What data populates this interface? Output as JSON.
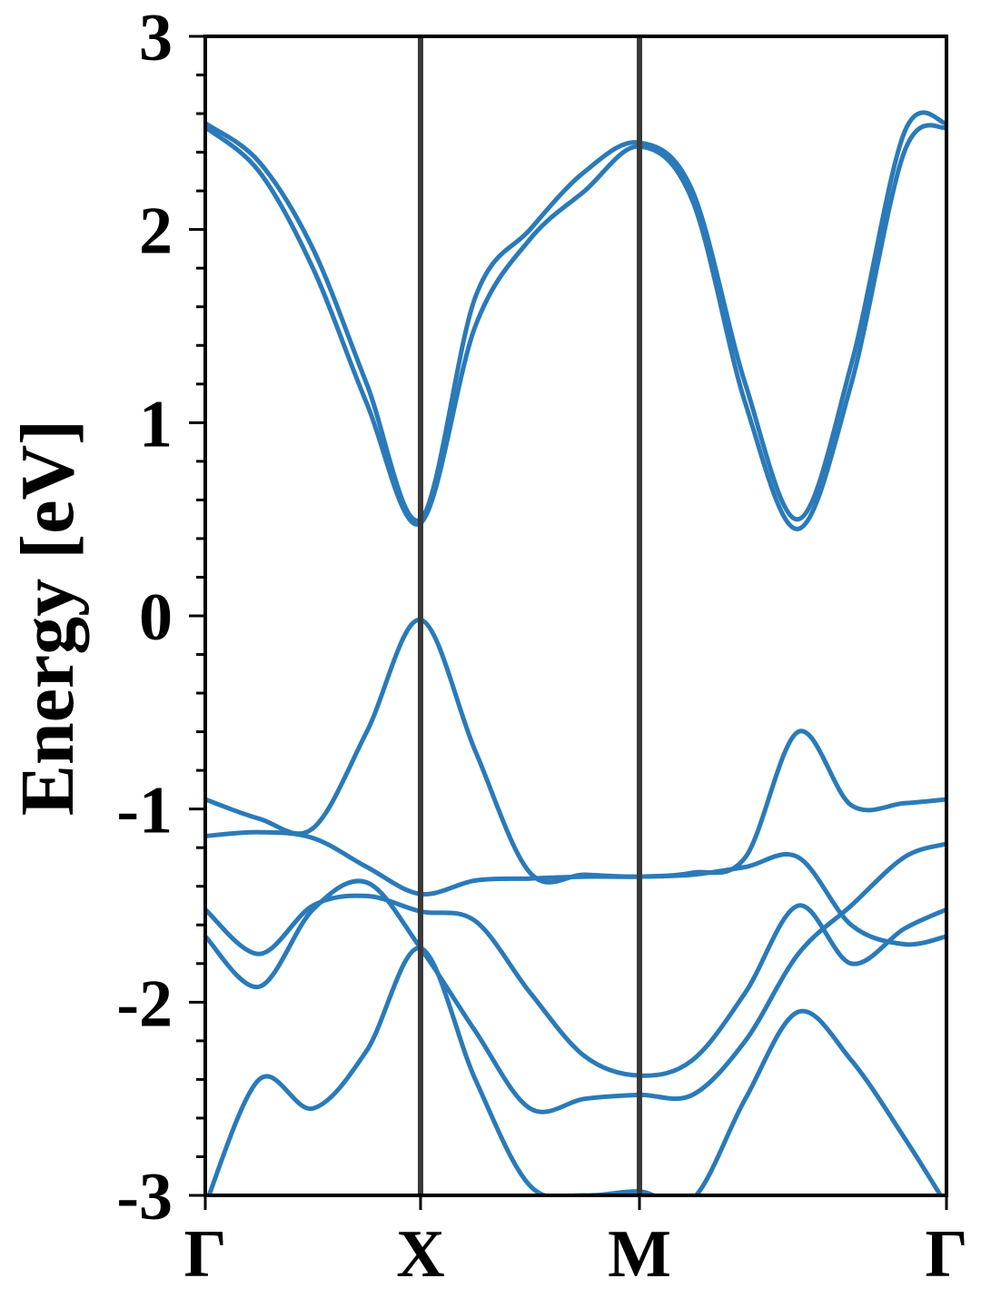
{
  "chart_data": {
    "type": "line",
    "title": "",
    "xlabel": "",
    "ylabel": "Energy [eV]",
    "ylim": [
      -3,
      3
    ],
    "xlim": [
      0,
      3.45
    ],
    "high_symmetry_points": [
      {
        "label": "Γ",
        "x": 0
      },
      {
        "label": "X",
        "x": 1.0
      },
      {
        "label": "M",
        "x": 2.0
      },
      {
        "label": "Γ",
        "x": 3.45
      }
    ],
    "y_ticks": [
      -3,
      -2,
      -1,
      0,
      1,
      2,
      3
    ],
    "y_tick_labels": [
      "-3",
      "-2",
      "-1",
      "0",
      "1",
      "2",
      "3"
    ],
    "line_color": "#2a7ab9",
    "divider_color": "#3a3a3a",
    "grid": false,
    "series": [
      {
        "x": [
          0,
          0.25,
          0.5,
          0.75,
          1.0,
          1.25,
          1.5,
          1.75,
          2.0,
          2.25,
          2.5,
          2.75,
          3.0,
          3.25,
          3.45
        ],
        "values": [
          2.55,
          2.35,
          1.9,
          1.2,
          0.5,
          1.65,
          2.0,
          2.3,
          2.45,
          2.2,
          1.2,
          0.5,
          1.3,
          2.5,
          2.55
        ]
      },
      {
        "x": [
          0,
          0.25,
          0.5,
          0.75,
          1.0,
          1.25,
          1.5,
          1.75,
          2.0,
          2.25,
          2.5,
          2.75,
          3.0,
          3.25,
          3.45
        ],
        "values": [
          2.53,
          2.3,
          1.8,
          1.1,
          0.48,
          1.5,
          1.95,
          2.2,
          2.43,
          2.15,
          1.1,
          0.45,
          1.2,
          2.4,
          2.53
        ]
      },
      {
        "x": [
          0,
          0.25,
          0.5,
          0.75,
          1.0,
          1.25,
          1.5,
          1.75,
          2.0,
          2.25,
          2.5,
          2.75,
          3.0,
          3.25,
          3.45
        ],
        "values": [
          -0.95,
          -1.05,
          -1.1,
          -0.6,
          -0.02,
          -0.7,
          -1.33,
          -1.34,
          -1.35,
          -1.33,
          -1.25,
          -0.6,
          -0.98,
          -0.97,
          -0.95
        ]
      },
      {
        "x": [
          0,
          0.25,
          0.5,
          0.75,
          1.0,
          1.25,
          1.5,
          1.75,
          2.0,
          2.25,
          2.5,
          2.75,
          3.0,
          3.25,
          3.45
        ],
        "values": [
          -1.14,
          -1.12,
          -1.15,
          -1.3,
          -1.44,
          -1.37,
          -1.36,
          -1.35,
          -1.35,
          -1.34,
          -1.3,
          -1.25,
          -1.6,
          -1.7,
          -1.66
        ]
      },
      {
        "x": [
          0,
          0.25,
          0.5,
          0.75,
          1.0,
          1.25,
          1.5,
          1.75,
          2.0,
          2.25,
          2.5,
          2.75,
          3.0,
          3.25,
          3.45
        ],
        "values": [
          -1.52,
          -1.75,
          -1.5,
          -1.45,
          -1.53,
          -1.58,
          -1.95,
          -2.28,
          -2.38,
          -2.3,
          -1.95,
          -1.5,
          -1.8,
          -1.62,
          -1.52
        ]
      },
      {
        "x": [
          0,
          0.25,
          0.5,
          0.75,
          1.0,
          1.25,
          1.5,
          1.75,
          2.0,
          2.25,
          2.5,
          2.75,
          3.0,
          3.25,
          3.45
        ],
        "values": [
          -1.66,
          -1.92,
          -1.52,
          -1.38,
          -1.72,
          -2.15,
          -2.55,
          -2.5,
          -2.48,
          -2.48,
          -2.2,
          -1.75,
          -1.5,
          -1.25,
          -1.18
        ]
      },
      {
        "x": [
          0,
          0.25,
          0.5,
          0.75,
          1.0,
          1.25,
          1.5,
          1.75,
          2.0,
          2.25,
          2.5,
          2.75,
          3.0,
          3.25,
          3.45
        ],
        "values": [
          -3.05,
          -2.4,
          -2.55,
          -2.25,
          -1.72,
          -2.4,
          -2.95,
          -3.0,
          -2.98,
          -3.02,
          -2.5,
          -2.05,
          -2.3,
          -2.7,
          -3.05
        ]
      }
    ]
  }
}
